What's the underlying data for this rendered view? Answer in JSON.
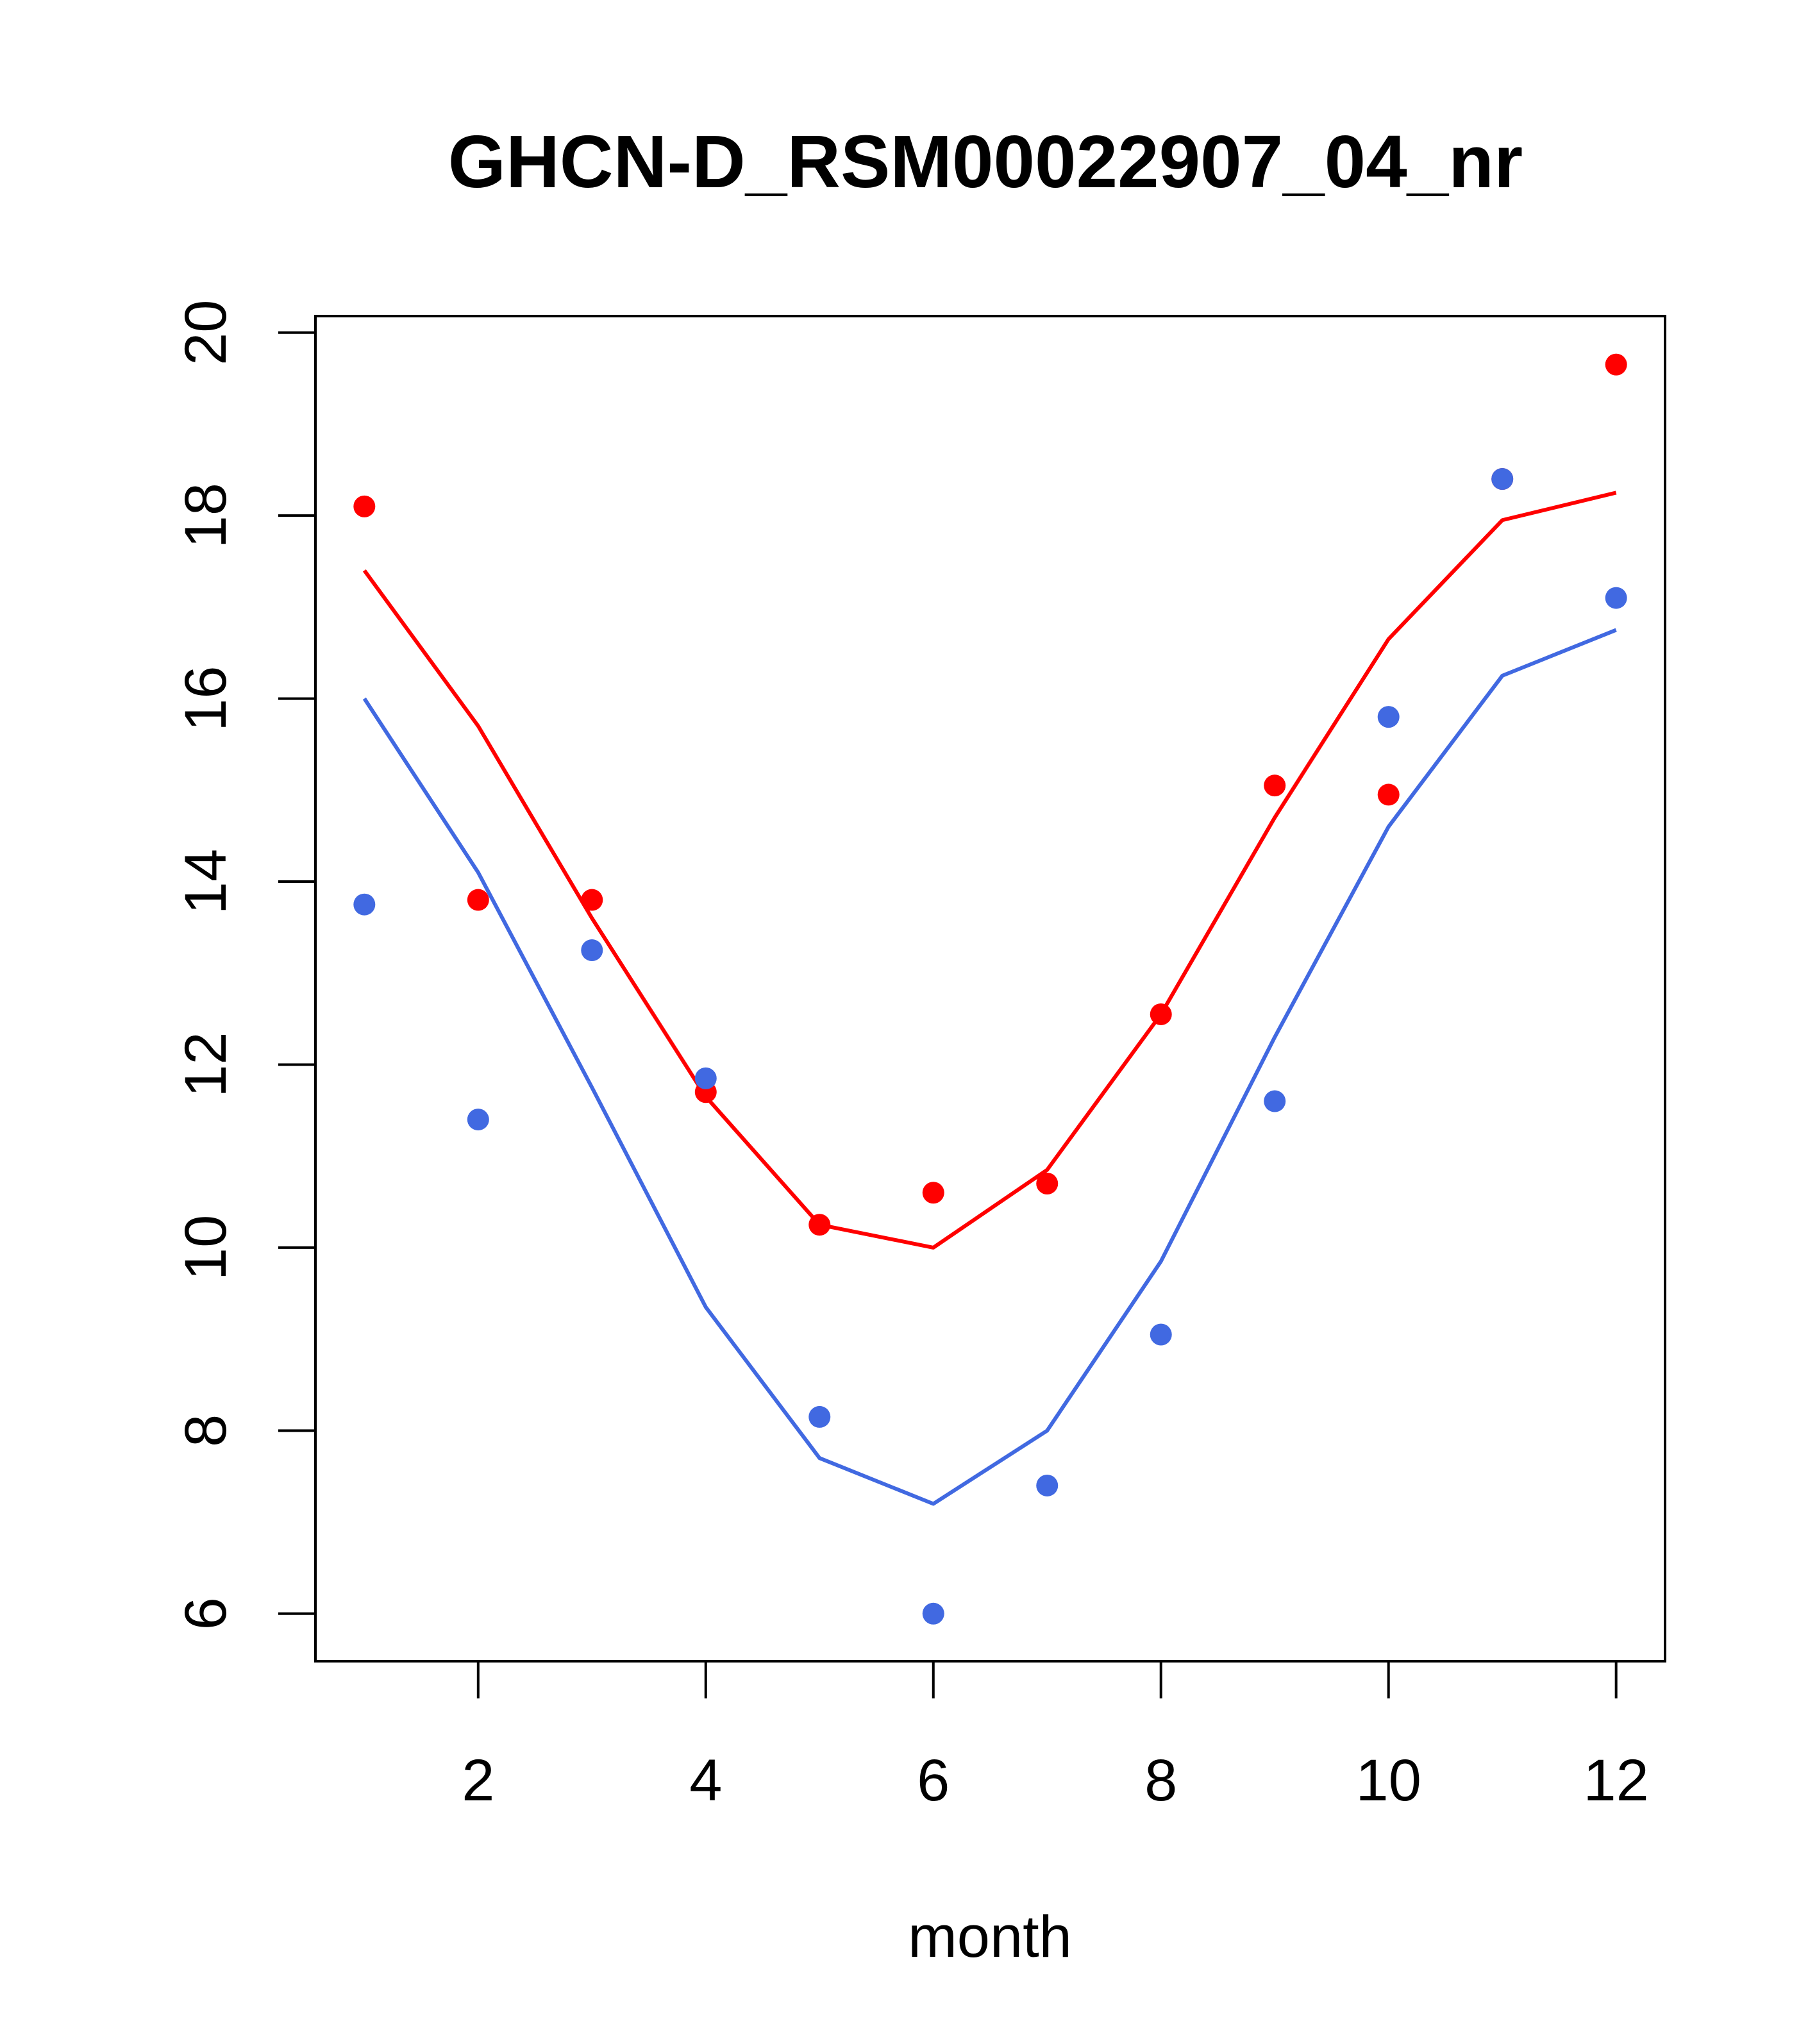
{
  "chart_data": {
    "type": "line",
    "title": "GHCN-D_RSM00022907_04_nr",
    "xlabel": "month",
    "ylabel": "",
    "xlim": [
      0.57,
      12.43
    ],
    "ylim": [
      5.48,
      20.18
    ],
    "x_ticks": [
      2,
      4,
      6,
      8,
      10,
      12
    ],
    "y_ticks": [
      6,
      8,
      10,
      12,
      14,
      16,
      18,
      20
    ],
    "grid": false,
    "x": [
      1,
      2,
      3,
      4,
      5,
      6,
      7,
      8,
      9,
      10,
      11,
      12
    ],
    "series": [
      {
        "name": "red-line",
        "kind": "line",
        "color": "#ff0000",
        "values": [
          17.4,
          15.7,
          13.6,
          11.65,
          10.25,
          10.0,
          10.85,
          12.55,
          14.7,
          16.65,
          17.95,
          18.25
        ]
      },
      {
        "name": "red-points",
        "kind": "points",
        "color": "#ff0000",
        "values": [
          18.1,
          13.8,
          13.8,
          11.7,
          10.25,
          10.6,
          10.7,
          12.55,
          15.05,
          14.95,
          18.4,
          19.65
        ]
      },
      {
        "name": "blue-line",
        "kind": "line",
        "color": "#4169e1",
        "values": [
          16.0,
          14.1,
          11.75,
          9.35,
          7.7,
          7.2,
          8.0,
          9.85,
          12.3,
          14.6,
          16.25,
          16.75
        ]
      },
      {
        "name": "blue-points",
        "kind": "points",
        "color": "#4169e1",
        "values": [
          13.75,
          11.4,
          13.25,
          11.85,
          8.15,
          6.0,
          7.4,
          9.05,
          11.6,
          15.8,
          18.4,
          17.1
        ]
      }
    ]
  }
}
